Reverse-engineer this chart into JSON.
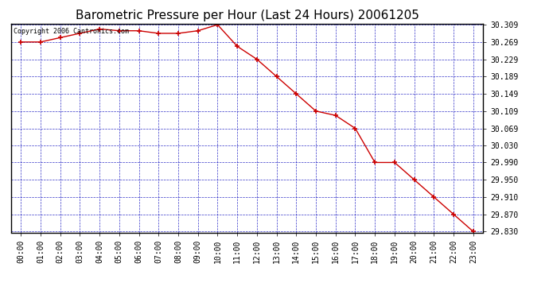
{
  "title": "Barometric Pressure per Hour (Last 24 Hours) 20061205",
  "copyright": "Copyright 2006 Cantronics.com",
  "hours": [
    0,
    1,
    2,
    3,
    4,
    5,
    6,
    7,
    8,
    9,
    10,
    11,
    12,
    13,
    14,
    15,
    16,
    17,
    18,
    19,
    20,
    21,
    22,
    23
  ],
  "pressure": [
    30.269,
    30.269,
    30.279,
    30.289,
    30.299,
    30.295,
    30.295,
    30.289,
    30.289,
    30.295,
    30.309,
    30.259,
    30.229,
    30.189,
    30.149,
    30.109,
    30.099,
    30.069,
    29.99,
    29.99,
    29.95,
    29.91,
    29.87,
    29.83
  ],
  "ylim_min": 29.83,
  "ylim_max": 30.309,
  "yticks": [
    30.309,
    30.269,
    30.229,
    30.189,
    30.149,
    30.109,
    30.069,
    30.03,
    29.99,
    29.95,
    29.91,
    29.87,
    29.83
  ],
  "line_color": "#cc0000",
  "marker_color": "#cc0000",
  "fig_bg_color": "#ffffff",
  "plot_bg": "#ffffff",
  "grid_color": "#0000bb",
  "border_color": "#000000",
  "title_fontsize": 11,
  "copyright_fontsize": 6,
  "tick_fontsize": 7
}
